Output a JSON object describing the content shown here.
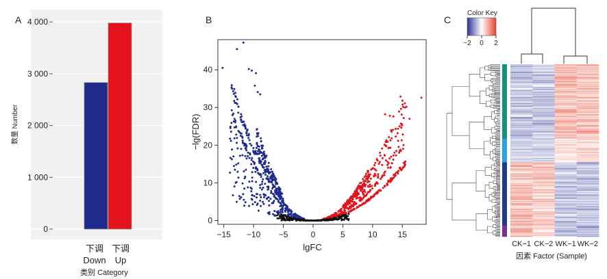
{
  "panels": {
    "a": "A",
    "b": "B",
    "c": "C"
  },
  "colors": {
    "down": "#1f2b8c",
    "up": "#e3121b",
    "nonsig": "#111111",
    "panel_bg": "#f0f1f0",
    "cluster_green": "#14937b",
    "cluster_cyan": "#2ca3df",
    "cluster_navy": "#223a8a",
    "cluster_purple": "#7b2f8e"
  },
  "chart_data": [
    {
      "type": "bar",
      "panel": "A",
      "categories": [
        "下调 Down",
        "下调 Up"
      ],
      "category_top": [
        "下调",
        "下调"
      ],
      "category_bottom": [
        "Down",
        "Up"
      ],
      "values": [
        2830,
        3980
      ],
      "ylim": [
        0,
        4200
      ],
      "yticks": [
        0,
        1000,
        2000,
        3000,
        4000
      ],
      "ytick_labels": [
        "0",
        "1 000",
        "2 000",
        "3 000",
        "4 000"
      ],
      "ylabel": "数量 Number",
      "xlabel": "类别 Category",
      "grid": true
    },
    {
      "type": "scatter",
      "panel": "B",
      "xlabel": "lgFC",
      "ylabel": "−lg(FDR)",
      "xlim": [
        -16,
        19
      ],
      "ylim": [
        -1,
        48
      ],
      "xticks": [
        -15,
        -10,
        -5,
        0,
        5,
        10,
        15
      ],
      "xtick_labels": [
        "−15",
        "−10",
        "−5",
        "0",
        "5",
        "10",
        "15"
      ],
      "yticks": [
        0,
        10,
        20,
        30,
        40
      ],
      "ytick_labels": [
        "0",
        "10",
        "20",
        "30",
        "40"
      ],
      "grid": false,
      "series": [
        {
          "group": "down",
          "color": "#1f2b8c",
          "outliers": [
            [
              -15.2,
              40.5
            ],
            [
              -12.8,
              45.5
            ],
            [
              -11.7,
              47.2
            ],
            [
              -10.8,
              40.2
            ],
            [
              -10.3,
              39.8
            ],
            [
              -9.6,
              39.1
            ],
            [
              -9.8,
              35.8
            ],
            [
              -9.3,
              34.1
            ],
            [
              -8.9,
              33.5
            ]
          ]
        },
        {
          "group": "up",
          "color": "#e3121b",
          "outliers": [
            [
              18.2,
              32.6
            ],
            [
              14.7,
              32.9
            ],
            [
              15.7,
              30.2
            ],
            [
              12.1,
              28.2
            ],
            [
              12.9,
              27.8
            ],
            [
              13.5,
              27.6
            ],
            [
              16.2,
              27.0
            ]
          ]
        },
        {
          "group": "nonsig",
          "color": "#111111"
        }
      ]
    },
    {
      "type": "heatmap",
      "panel": "C",
      "columns": [
        "CK−1",
        "CK−2",
        "WK−1",
        "WK−2"
      ],
      "xlabel": "因素 Factor (Sample)",
      "color_key": {
        "title": "Color Key",
        "ticks": [
          -2,
          0,
          2
        ],
        "tick_labels": [
          "−2",
          "0",
          "2"
        ],
        "low": "#2b3496",
        "mid": "#ffffff",
        "high": "#e8432b"
      },
      "row_clusters": [
        {
          "name": "cluster1",
          "color": "#14937b",
          "rows": 100
        },
        {
          "name": "cluster2",
          "color": "#2ca3df",
          "rows": 32
        },
        {
          "name": "cluster3",
          "color": "#223a8a",
          "rows": 85
        },
        {
          "name": "cluster4",
          "color": "#7b2f8e",
          "rows": 15
        }
      ],
      "cluster_pattern": [
        [
          -0.6,
          -0.6,
          0.7,
          0.7
        ],
        [
          -0.5,
          -0.4,
          0.3,
          0.4
        ],
        [
          0.7,
          0.6,
          -0.6,
          -0.6
        ],
        [
          0.8,
          0.5,
          -0.6,
          -0.7
        ]
      ]
    }
  ]
}
